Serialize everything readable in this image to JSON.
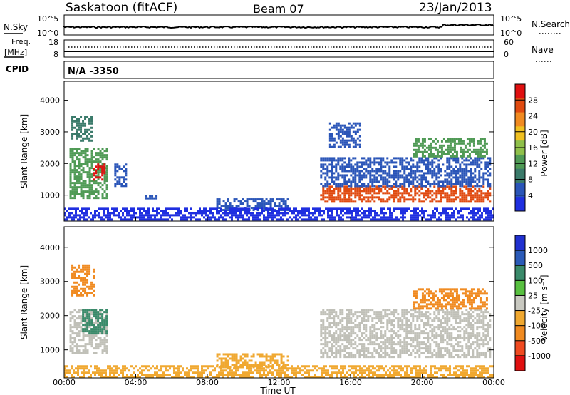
{
  "header": {
    "station": "Saskatoon (fitACF)",
    "beam": "Beam 07",
    "date": "23/Jan/2013"
  },
  "top_panels": {
    "nsky_label": "N.Sky",
    "nsky_ticks": [
      "10^5",
      "10^0"
    ],
    "nsearch_label": "N.Search",
    "nsearch_ticks": [
      "10^5",
      "10^0"
    ],
    "freq_label": "Freq.",
    "freq_unit": "[MHz]",
    "freq_ticks": [
      "18",
      "8"
    ],
    "nave_label": "Nave",
    "nave_ticks": [
      "60",
      "0"
    ],
    "cpid_label": "CPID",
    "cpid_value": "N/A  -3350"
  },
  "colors": {
    "power": [
      "#1f2fe0",
      "#2a55b8",
      "#3a7a6a",
      "#4f9a55",
      "#8fc04a",
      "#f0c020",
      "#f08a20",
      "#e04a10",
      "#e01010"
    ],
    "velocity": [
      "#e01010",
      "#f04a20",
      "#f08a20",
      "#f0a830",
      "#c8c8c0",
      "#58c040",
      "#3a8a6a",
      "#2a5ab8",
      "#2030d0"
    ],
    "ground_scatter": "#c0c0b8"
  },
  "chart_data": [
    {
      "type": "heatmap",
      "name": "power",
      "xlabel": "",
      "ylabel": "Slant Range [km]",
      "ylim": [
        180,
        4600
      ],
      "xlim_hours": [
        0,
        24
      ],
      "x_tick_labels": [
        "00:00",
        "04:00",
        "08:00",
        "12:00",
        "16:00",
        "20:00",
        "00:00"
      ],
      "y_tick_labels": [
        "1000",
        "2000",
        "3000",
        "4000"
      ],
      "y_ticks": [
        1000,
        2000,
        3000,
        4000
      ],
      "colorbar": {
        "label": "Power [dB]",
        "ticks": [
          "4",
          "8",
          "12",
          "16",
          "20",
          "24",
          "28"
        ],
        "range": [
          0,
          30
        ]
      },
      "regions": [
        {
          "t0": 0.3,
          "t1": 2.4,
          "r0": 900,
          "r1": 2500,
          "dB": 10
        },
        {
          "t0": 0.4,
          "t1": 1.5,
          "r0": 2700,
          "r1": 3500,
          "dB": 8
        },
        {
          "t0": 1.6,
          "t1": 2.3,
          "r0": 1500,
          "r1": 2000,
          "dB": 27
        },
        {
          "t0": 2.8,
          "t1": 3.5,
          "r0": 1300,
          "r1": 2000,
          "dB": 6
        },
        {
          "t0": 4.5,
          "t1": 5.2,
          "r0": 900,
          "r1": 1000,
          "dB": 4
        },
        {
          "t0": 8.5,
          "t1": 12.5,
          "r0": 500,
          "r1": 900,
          "dB": 4
        },
        {
          "t0": 14.3,
          "t1": 23.8,
          "r0": 800,
          "r1": 1300,
          "dB": 24
        },
        {
          "t0": 14.3,
          "t1": 23.8,
          "r0": 1300,
          "r1": 2200,
          "dB": 6
        },
        {
          "t0": 14.8,
          "t1": 16.5,
          "r0": 2500,
          "r1": 3300,
          "dB": 5
        },
        {
          "t0": 19.5,
          "t1": 23.6,
          "r0": 2200,
          "r1": 2800,
          "dB": 10
        },
        {
          "t0": 0,
          "t1": 24,
          "r0": 200,
          "r1": 600,
          "dB": 3
        }
      ]
    },
    {
      "type": "heatmap",
      "name": "velocity",
      "xlabel": "Time UT",
      "ylabel": "Slant Range [km]",
      "ylim": [
        180,
        4600
      ],
      "xlim_hours": [
        0,
        24
      ],
      "x_tick_labels": [
        "00:00",
        "04:00",
        "08:00",
        "12:00",
        "16:00",
        "20:00",
        "00:00"
      ],
      "y_tick_labels": [
        "1000",
        "2000",
        "3000",
        "4000"
      ],
      "y_ticks": [
        1000,
        2000,
        3000,
        4000
      ],
      "colorbar": {
        "label": "Velocity [m s⁻¹]",
        "ticks": [
          "1000",
          "500",
          "100",
          "25",
          "-25",
          "-100",
          "-500",
          "-1000"
        ]
      },
      "regions": [
        {
          "t0": 0.3,
          "t1": 2.4,
          "r0": 900,
          "r1": 2200,
          "v": "ground"
        },
        {
          "t0": 1.0,
          "t1": 2.4,
          "r0": 1500,
          "r1": 2200,
          "v": 150
        },
        {
          "t0": 0.4,
          "t1": 1.6,
          "r0": 2600,
          "r1": 3500,
          "v": -200
        },
        {
          "t0": 14.3,
          "t1": 23.8,
          "r0": 800,
          "r1": 2200,
          "v": "ground"
        },
        {
          "t0": 19.5,
          "t1": 23.6,
          "r0": 2200,
          "r1": 2800,
          "v": -150
        },
        {
          "t0": 8.5,
          "t1": 12.5,
          "r0": 500,
          "r1": 900,
          "v": -80
        },
        {
          "t0": 0,
          "t1": 24,
          "r0": 200,
          "r1": 550,
          "v": -60
        }
      ]
    }
  ]
}
